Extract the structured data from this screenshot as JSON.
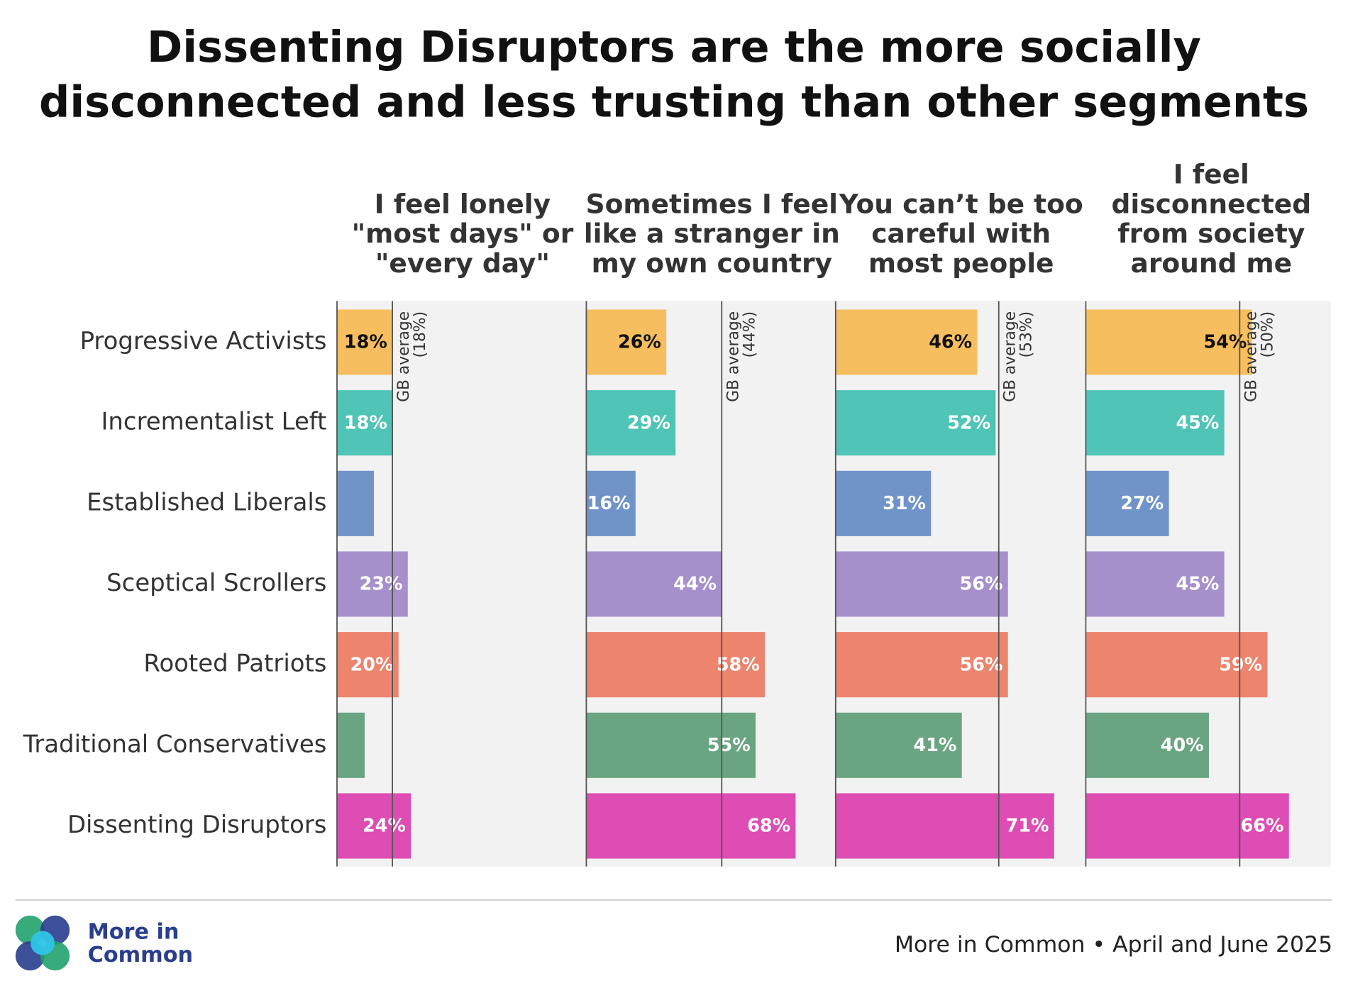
{
  "chart_data": {
    "type": "bar",
    "orientation": "horizontal",
    "title": [
      "Dissenting Disruptors are the more socially",
      "disconnected and less trusting than other segments"
    ],
    "categories": [
      "Progressive Activists",
      "Incrementalist Left",
      "Established Liberals",
      "Sceptical Scrollers",
      "Rooted Patriots",
      "Traditional Conservatives",
      "Dissenting Disruptors"
    ],
    "colors": [
      "#f6be5e",
      "#4fc4b7",
      "#7094c8",
      "#a690cc",
      "#ec846e",
      "#6aa582",
      "#dd4db3"
    ],
    "xlim": [
      0,
      81
    ],
    "panels": [
      {
        "title": [
          "I feel lonely",
          "\"most days\" or",
          "\"every day\""
        ],
        "values": [
          18,
          18,
          12,
          23,
          20,
          9,
          24
        ],
        "value_labels": [
          "18%",
          "18%",
          null,
          "23%",
          "20%",
          null,
          "24%"
        ],
        "average": {
          "label": "GB average",
          "value": 18,
          "value_label": "(18%)"
        }
      },
      {
        "title": [
          "Sometimes I feel",
          "like a stranger in",
          "my own country"
        ],
        "values": [
          26,
          29,
          16,
          44,
          58,
          55,
          68
        ],
        "value_labels": [
          "26%",
          "29%",
          "16%",
          "44%",
          "58%",
          "55%",
          "68%"
        ],
        "average": {
          "label": "GB average",
          "value": 44,
          "value_label": "(44%)"
        }
      },
      {
        "title": [
          "You can’t be too",
          "careful with",
          "most people"
        ],
        "values": [
          46,
          52,
          31,
          56,
          56,
          41,
          71
        ],
        "value_labels": [
          "46%",
          "52%",
          "31%",
          "56%",
          "56%",
          "41%",
          "71%"
        ],
        "average": {
          "label": "GB average",
          "value": 53,
          "value_label": "(53%)"
        }
      },
      {
        "title": [
          "I feel",
          "disconnected",
          "from society",
          "around me"
        ],
        "values": [
          54,
          45,
          27,
          45,
          59,
          40,
          66
        ],
        "value_labels": [
          "54%",
          "45%",
          "27%",
          "45%",
          "59%",
          "40%",
          "66%"
        ],
        "average": {
          "label": "GB average",
          "value": 50,
          "value_label": "(50%)"
        }
      }
    ]
  },
  "footer": {
    "logo": [
      "More in",
      "Common"
    ],
    "source": "More in Common • April and June 2025"
  }
}
